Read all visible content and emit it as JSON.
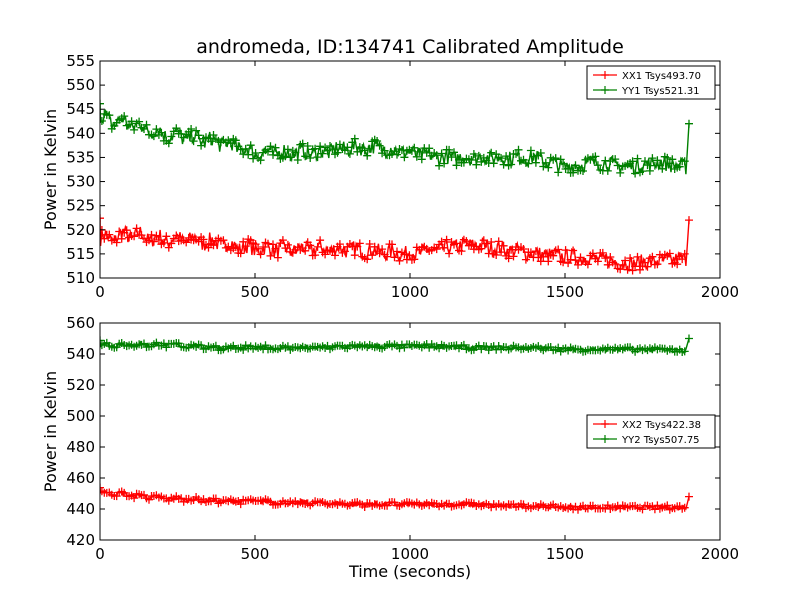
{
  "figure": {
    "title": "andromeda, ID:134741 Calibrated Amplitude"
  },
  "chart_data": [
    {
      "type": "line",
      "title": "andromeda, ID:134741 Calibrated Amplitude",
      "xlabel": "",
      "ylabel": "Power in Kelvin",
      "xlim": [
        0,
        2000
      ],
      "ylim": [
        510,
        555
      ],
      "xticks": [
        0,
        500,
        1000,
        1500,
        2000
      ],
      "yticks": [
        510,
        515,
        520,
        525,
        530,
        535,
        540,
        545,
        550,
        555
      ],
      "grid": false,
      "legend_position": "top-right",
      "marker": "+",
      "series": [
        {
          "name": "XX1 Tsys493.70",
          "color": "#ff0000",
          "x": [
            0,
            100,
            200,
            300,
            400,
            500,
            600,
            700,
            800,
            900,
            1000,
            1100,
            1200,
            1300,
            1400,
            1500,
            1600,
            1700,
            1800,
            1890,
            1900
          ],
          "values": [
            518,
            519,
            518,
            518,
            517,
            516,
            516,
            516,
            516,
            515.5,
            515,
            516,
            517,
            516,
            515,
            514.5,
            514,
            513,
            513.5,
            514,
            522
          ]
        },
        {
          "name": "YY1 Tsys521.31",
          "color": "#008000",
          "x": [
            0,
            100,
            200,
            300,
            400,
            500,
            600,
            700,
            800,
            900,
            1000,
            1100,
            1200,
            1300,
            1400,
            1500,
            1600,
            1700,
            1800,
            1890,
            1900
          ],
          "values": [
            543,
            542,
            540,
            539,
            538,
            536,
            536,
            536,
            537,
            537,
            536,
            535,
            535,
            535,
            535,
            533,
            534,
            533,
            534,
            533,
            542
          ]
        }
      ]
    },
    {
      "type": "line",
      "title": "",
      "xlabel": "Time (seconds)",
      "ylabel": "Power in Kelvin",
      "xlim": [
        0,
        2000
      ],
      "ylim": [
        420,
        560
      ],
      "xticks": [
        0,
        500,
        1000,
        1500,
        2000
      ],
      "yticks": [
        420,
        440,
        460,
        480,
        500,
        520,
        540,
        560
      ],
      "grid": false,
      "legend_position": "center-right",
      "marker": "+",
      "series": [
        {
          "name": "XX2 Tsys422.38",
          "color": "#ff0000",
          "x": [
            0,
            100,
            200,
            300,
            400,
            500,
            600,
            700,
            800,
            900,
            1000,
            1100,
            1200,
            1300,
            1400,
            1500,
            1600,
            1700,
            1800,
            1890,
            1900
          ],
          "values": [
            451,
            449,
            447,
            446,
            445,
            445,
            444,
            444,
            443,
            443,
            443,
            443,
            443,
            442,
            442,
            441,
            441,
            441,
            441,
            441,
            448
          ]
        },
        {
          "name": "YY2 Tsys507.75",
          "color": "#008000",
          "x": [
            0,
            100,
            200,
            300,
            400,
            500,
            600,
            700,
            800,
            900,
            1000,
            1100,
            1200,
            1300,
            1400,
            1500,
            1600,
            1700,
            1800,
            1890,
            1900
          ],
          "values": [
            546,
            546,
            546,
            545,
            544,
            544,
            544,
            544,
            545,
            545,
            545,
            545,
            544,
            544,
            544,
            543,
            543,
            543,
            543,
            542,
            550
          ]
        }
      ]
    }
  ]
}
